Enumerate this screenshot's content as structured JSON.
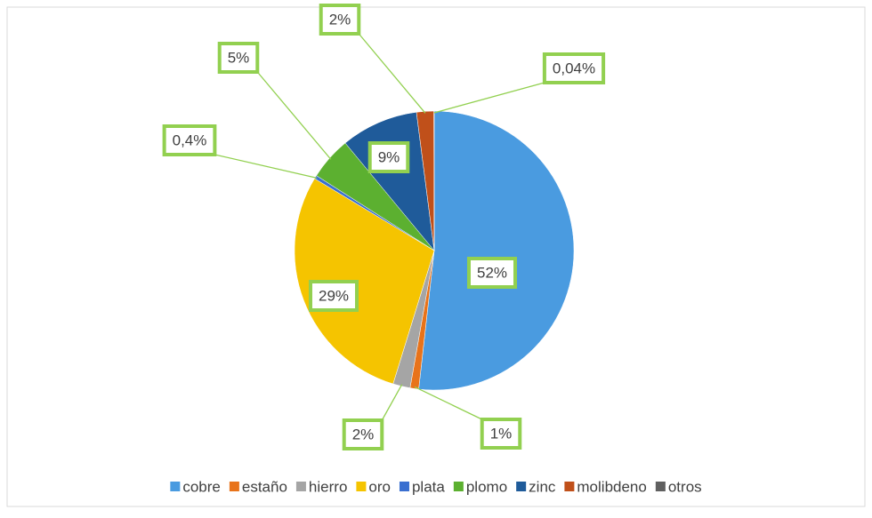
{
  "chart_data": {
    "type": "pie",
    "categories": [
      "cobre",
      "estaño",
      "hierro",
      "oro",
      "plata",
      "plomo",
      "zinc",
      "molibdeno",
      "otros"
    ],
    "values": [
      52,
      1,
      2,
      29,
      0.4,
      5,
      9,
      2,
      0.04
    ],
    "value_labels": [
      "52%",
      "1%",
      "2%",
      "29%",
      "0,4%",
      "5%",
      "9%",
      "2%",
      "0,04%"
    ],
    "colors": [
      "#4a9be0",
      "#e8731a",
      "#a5a5a5",
      "#f5c400",
      "#3a6fd0",
      "#5cb030",
      "#1f5b9a",
      "#c0501a",
      "#606060"
    ],
    "legend": "bottom"
  }
}
